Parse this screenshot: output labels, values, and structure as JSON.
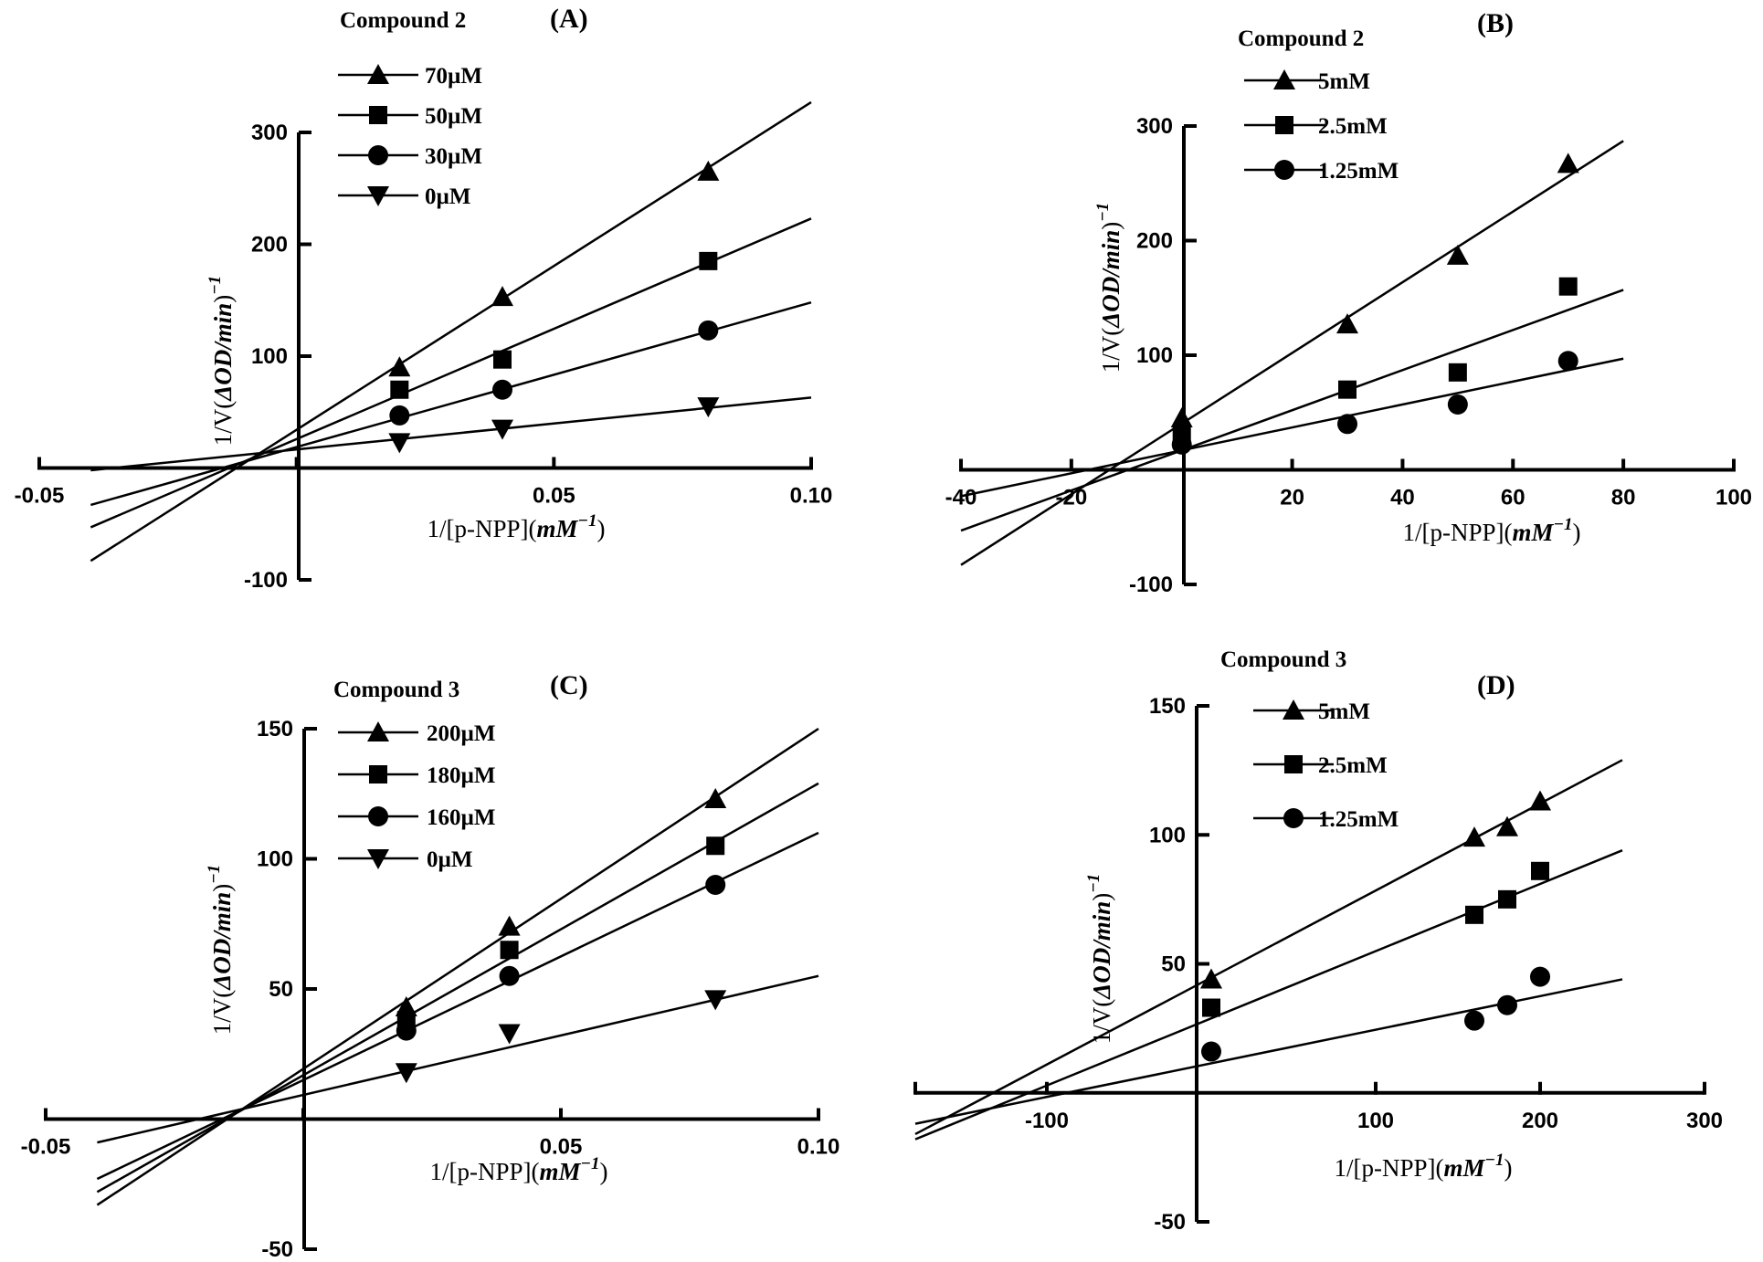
{
  "colors": {
    "ink": "#000000",
    "background": "#ffffff"
  },
  "chart_data": [
    {
      "type": "line",
      "panel": "(A)",
      "title": "Compound 2",
      "xlabel": {
        "prefix": "1/[p-NPP](",
        "unit": "mM",
        "sup": "−1",
        "suffix": ")"
      },
      "ylabel": {
        "prefix": "1/V(",
        "unit": "ΔOD/min",
        "suffix": ")",
        "sup": "−1"
      },
      "xlim": [
        -0.05,
        0.1
      ],
      "ylim": [
        -100,
        300
      ],
      "xticks": [
        -0.05,
        0.05,
        0.1
      ],
      "xtick_labels": [
        "-0.05",
        "0.05",
        "0.10"
      ],
      "yticks": [
        -100,
        100,
        200,
        300
      ],
      "ytick_labels": [
        "-100",
        "100",
        "200",
        "300"
      ],
      "x_minor": [
        0
      ],
      "legend": "top-left",
      "series": [
        {
          "name": "70µM",
          "marker": "triangle-up",
          "x": [
            0.02,
            0.04,
            0.08
          ],
          "y": [
            90,
            153,
            265
          ],
          "line": [
            [
              -0.04,
              -83
            ],
            [
              0.1,
              327
            ]
          ]
        },
        {
          "name": "50µM",
          "marker": "square",
          "x": [
            0.02,
            0.04,
            0.08
          ],
          "y": [
            70,
            97,
            185
          ],
          "line": [
            [
              -0.04,
              -53
            ],
            [
              0.1,
              223
            ]
          ]
        },
        {
          "name": "30µM",
          "marker": "circle",
          "x": [
            0.02,
            0.04,
            0.08
          ],
          "y": [
            47,
            70,
            123
          ],
          "line": [
            [
              -0.04,
              -33
            ],
            [
              0.1,
              148
            ]
          ]
        },
        {
          "name": "0µM",
          "marker": "triangle-down",
          "x": [
            0.02,
            0.04,
            0.08
          ],
          "y": [
            23,
            35,
            55
          ],
          "line": [
            [
              -0.04,
              -2
            ],
            [
              0.1,
              63
            ]
          ]
        }
      ]
    },
    {
      "type": "line",
      "panel": "(B)",
      "title": "Compound 2",
      "xlabel": {
        "prefix": "1/[p-NPP](",
        "unit": "mM",
        "sup": "−1",
        "suffix": ")"
      },
      "ylabel": {
        "prefix": "1/V(",
        "unit": "ΔOD/min",
        "suffix": ")",
        "sup": "−1"
      },
      "xlim": [
        -40,
        100
      ],
      "ylim": [
        -100,
        300
      ],
      "xticks": [
        -40,
        -20,
        20,
        40,
        60,
        80,
        100
      ],
      "xtick_labels": [
        "-40",
        "-20",
        "20",
        "40",
        "60",
        "80",
        "100"
      ],
      "yticks": [
        -100,
        100,
        200,
        300
      ],
      "ytick_labels": [
        "-100",
        "100",
        "200",
        "300"
      ],
      "x_minor": [],
      "legend": "top-left",
      "series": [
        {
          "name": "5mM",
          "marker": "triangle-up",
          "x": [
            0,
            30,
            50,
            70
          ],
          "y": [
            45,
            127,
            187,
            267
          ],
          "line": [
            [
              -40,
              -83
            ],
            [
              80,
              287
            ]
          ]
        },
        {
          "name": "2.5mM",
          "marker": "square",
          "x": [
            0,
            30,
            50,
            70
          ],
          "y": [
            30,
            70,
            85,
            160
          ],
          "line": [
            [
              -40,
              -53
            ],
            [
              80,
              157
            ]
          ]
        },
        {
          "name": "1.25mM",
          "marker": "circle",
          "x": [
            0,
            30,
            50,
            70
          ],
          "y": [
            22,
            40,
            57,
            95
          ],
          "line": [
            [
              -40,
              -23
            ],
            [
              80,
              97
            ]
          ]
        }
      ]
    },
    {
      "type": "line",
      "panel": "(C)",
      "title": "Compound 3",
      "xlabel": {
        "prefix": "1/[p-NPP](",
        "unit": "mM",
        "sup": "−1",
        "suffix": ")"
      },
      "ylabel": {
        "prefix": "1/V(",
        "unit": "ΔOD/min",
        "suffix": ")",
        "sup": "−1"
      },
      "xlim": [
        -0.05,
        0.1
      ],
      "ylim": [
        -50,
        150
      ],
      "xticks": [
        -0.05,
        0.05,
        0.1
      ],
      "xtick_labels": [
        "-0.05",
        "0.05",
        "0.10"
      ],
      "yticks": [
        -50,
        50,
        100,
        150
      ],
      "ytick_labels": [
        "-50",
        "50",
        "100",
        "150"
      ],
      "x_minor": [
        0
      ],
      "legend": "top-left",
      "series": [
        {
          "name": "200µM",
          "marker": "triangle-up",
          "x": [
            0.02,
            0.04,
            0.08
          ],
          "y": [
            43,
            74,
            123
          ],
          "line": [
            [
              -0.04,
              -33
            ],
            [
              0.1,
              150
            ]
          ]
        },
        {
          "name": "180µM",
          "marker": "square",
          "x": [
            0.02,
            0.04,
            0.08
          ],
          "y": [
            38,
            65,
            105
          ],
          "line": [
            [
              -0.04,
              -28
            ],
            [
              0.1,
              129
            ]
          ]
        },
        {
          "name": "160µM",
          "marker": "circle",
          "x": [
            0.02,
            0.04,
            0.08
          ],
          "y": [
            34,
            55,
            90
          ],
          "line": [
            [
              -0.04,
              -23
            ],
            [
              0.1,
              110
            ]
          ]
        },
        {
          "name": "0µM",
          "marker": "triangle-down",
          "x": [
            0.02,
            0.04,
            0.08
          ],
          "y": [
            18,
            33,
            46
          ],
          "line": [
            [
              -0.04,
              -9
            ],
            [
              0.1,
              55
            ]
          ]
        }
      ]
    },
    {
      "type": "line",
      "panel": "(D)",
      "title": "Compound 3",
      "xlabel": {
        "prefix": "1/[p-NPP](",
        "unit": "mM",
        "sup": "−1",
        "suffix": ")"
      },
      "ylabel": {
        "prefix": "1/V(",
        "unit": "ΔOD/min",
        "suffix": ")",
        "sup": "−1"
      },
      "xlim": [
        -180,
        300
      ],
      "ylim": [
        -50,
        150
      ],
      "xticks": [
        -100,
        100,
        200,
        300
      ],
      "xtick_labels": [
        "-100",
        "100",
        "200",
        "300"
      ],
      "yticks": [
        -50,
        50,
        100,
        150
      ],
      "ytick_labels": [
        "-50",
        "50",
        "100",
        "150"
      ],
      "x_minor": [],
      "legend": "top-left",
      "series": [
        {
          "name": "5mM",
          "marker": "triangle-up",
          "x": [
            0,
            160,
            180,
            200
          ],
          "y": [
            44,
            99,
            103,
            113
          ],
          "line": [
            [
              -180,
              -16
            ],
            [
              250,
              129
            ]
          ]
        },
        {
          "name": "2.5mM",
          "marker": "square",
          "x": [
            0,
            160,
            180,
            200
          ],
          "y": [
            33,
            69,
            75,
            86
          ],
          "line": [
            [
              -180,
              -18
            ],
            [
              250,
              94
            ]
          ]
        },
        {
          "name": "1.25mM",
          "marker": "circle",
          "x": [
            0,
            160,
            180,
            200
          ],
          "y": [
            16,
            28,
            34,
            45
          ],
          "line": [
            [
              -180,
              -12
            ],
            [
              250,
              44
            ]
          ]
        }
      ]
    }
  ]
}
